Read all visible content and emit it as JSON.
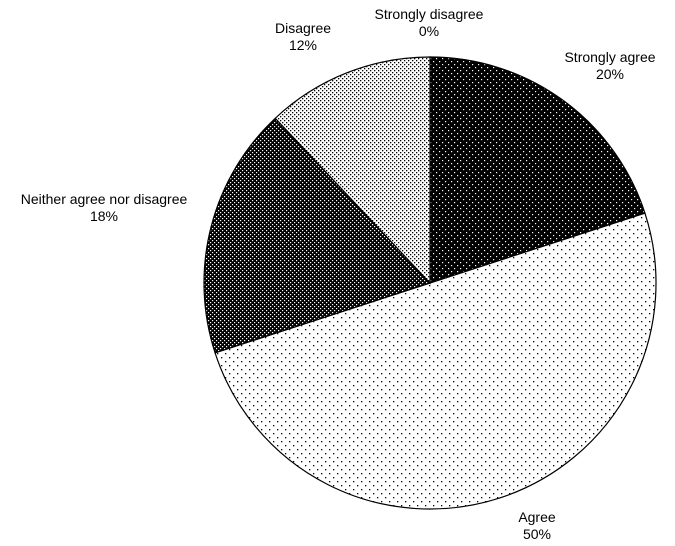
{
  "chart_data": {
    "type": "pie",
    "title": "",
    "slices": [
      {
        "label": "Strongly agree",
        "percent_label": "20%",
        "value": 20,
        "pattern": "dots-on-black"
      },
      {
        "label": "Agree",
        "percent_label": "50%",
        "value": 50,
        "pattern": "sparse-dots"
      },
      {
        "label": "Neither agree nor disagree",
        "percent_label": "18%",
        "value": 18,
        "pattern": "dense-dark-dots"
      },
      {
        "label": "Disagree",
        "percent_label": "12%",
        "value": 12,
        "pattern": "dense-light-dots"
      },
      {
        "label": "Strongly disagree",
        "percent_label": "0%",
        "value": 0,
        "pattern": "none"
      }
    ],
    "start_angle_deg": 0,
    "direction": "clockwise",
    "legend": "none",
    "colors": {
      "outline": "#000000",
      "dark_fill": "#000000",
      "light_fill": "#ffffff"
    }
  }
}
